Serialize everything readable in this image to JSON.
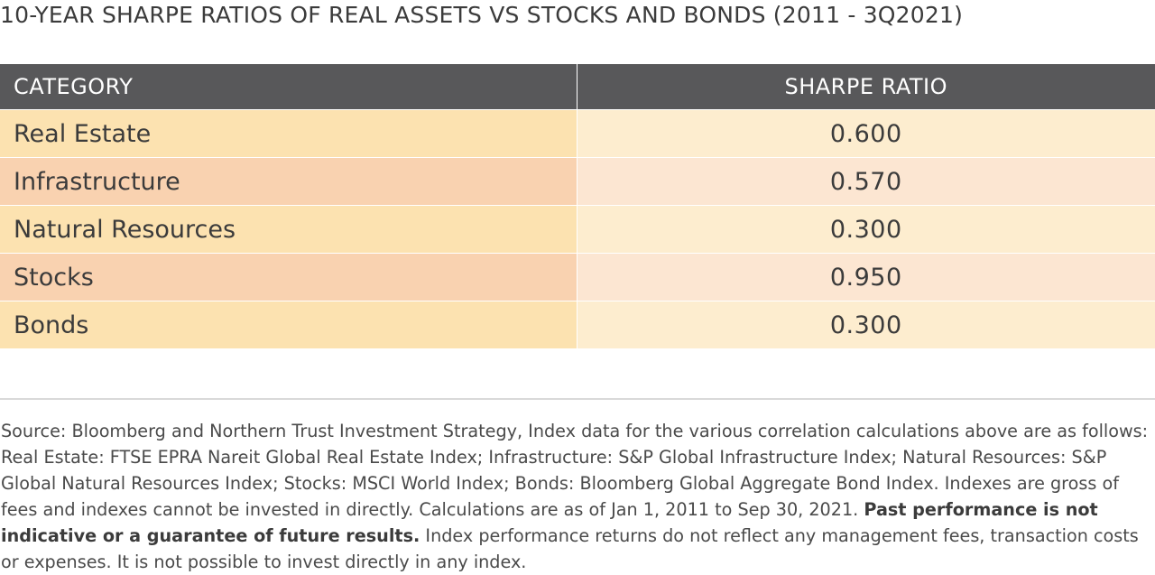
{
  "chart_data": {
    "type": "table",
    "title": "10-YEAR SHARPE RATIOS OF REAL ASSETS VS STOCKS AND BONDS (2011 - 3Q2021)",
    "columns": [
      "CATEGORY",
      "SHARPE RATIO"
    ],
    "rows": [
      {
        "category": "Real Estate",
        "value": "0.600"
      },
      {
        "category": "Infrastructure",
        "value": "0.570"
      },
      {
        "category": "Natural Resources",
        "value": "0.300"
      },
      {
        "category": "Stocks",
        "value": "0.950"
      },
      {
        "category": "Bonds",
        "value": "0.300"
      }
    ]
  },
  "colors": {
    "header_bg": "#58585a",
    "odd_row_category": "#fce2b0",
    "odd_row_value": "#fdedcf",
    "even_row_category": "#f9d2b0",
    "even_row_value": "#fce6d2"
  },
  "footnote": {
    "source_text": "Source: Bloomberg and Northern Trust Investment Strategy, Index data for the various correlation calculations above are as follows: Real Estate: FTSE EPRA Nareit Global Real Estate Index; Infrastructure: S&P Global Infrastructure Index; Natural Resources: S&P Global Natural Resources Index; Stocks: MSCI World Index; Bonds: Bloomberg Global Aggregate Bond Index. Indexes are gross of fees and indexes cannot be invested in directly. Calculations are as of Jan 1, 2011 to Sep 30, 2021.",
    "bold_text": "Past performance is not indicative or a guarantee of future results.",
    "tail_text": "Index performance returns do not reflect any management fees, transaction costs or expenses. It is not possible to invest directly in any index."
  }
}
